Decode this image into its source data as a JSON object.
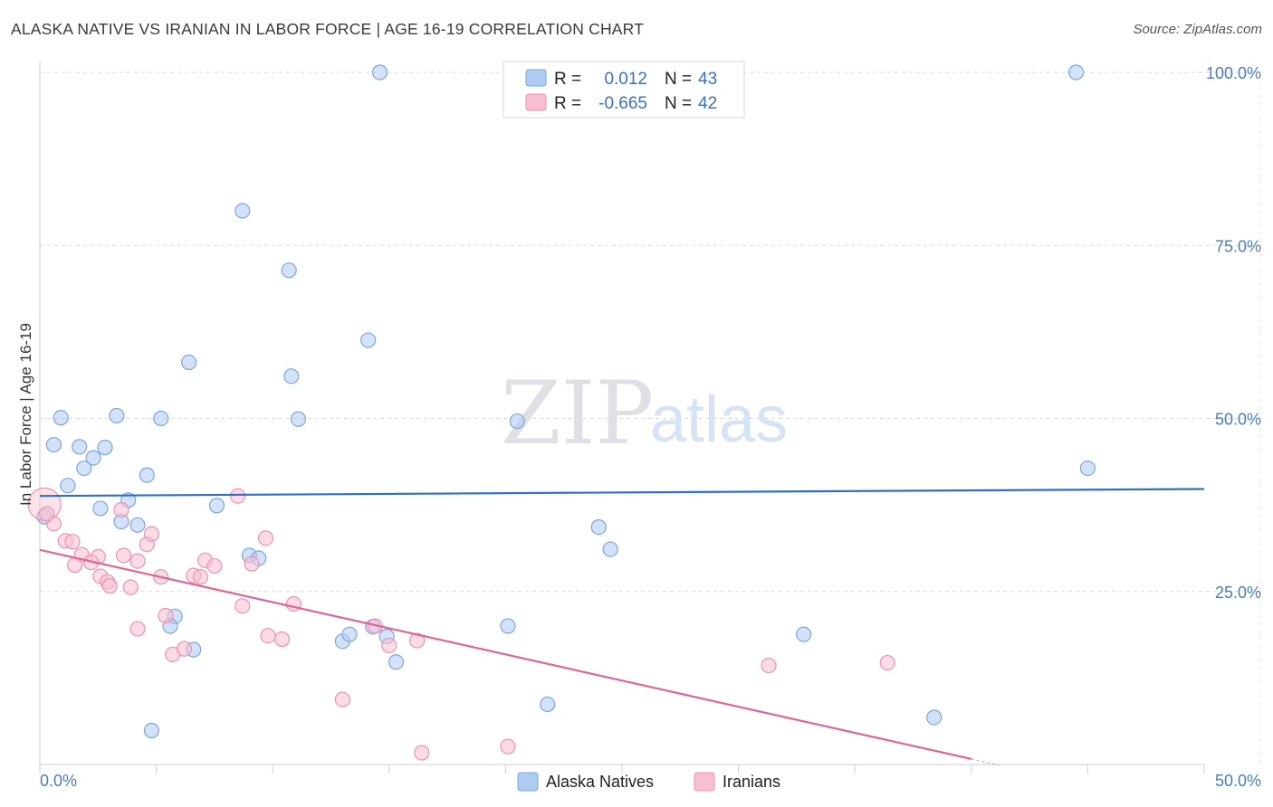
{
  "title": "ALASKA NATIVE VS IRANIAN IN LABOR FORCE | AGE 16-19 CORRELATION CHART",
  "source": "Source: ZipAtlas.com",
  "watermark": {
    "zip": "ZIP",
    "atlas": "atlas"
  },
  "legend": {
    "r_label": "R =",
    "n_label": "N =",
    "rows": [
      {
        "r": "0.012",
        "n": "43"
      },
      {
        "r": "-0.665",
        "n": "42"
      }
    ]
  },
  "colors": {
    "blue_fill": "#aecbf2",
    "blue_stroke": "#7aa6df",
    "blue_line": "#2f6fc6",
    "pink_fill": "#f7bfd2",
    "pink_stroke": "#ec92b2",
    "pink_line": "#e0668f"
  },
  "chart_data": {
    "type": "scatter",
    "title": "ALASKA NATIVE VS IRANIAN IN LABOR FORCE | AGE 16-19 CORRELATION CHART",
    "xlabel": "",
    "ylabel": "In Labor Force | Age 16-19",
    "xlim": [
      0,
      50
    ],
    "ylim": [
      0,
      100
    ],
    "x_tick_labels": [
      "0.0%",
      "50.0%"
    ],
    "y_ticks": [
      25,
      50,
      75,
      100
    ],
    "y_tick_labels": [
      "25.0%",
      "50.0%",
      "75.0%",
      "100.0%"
    ],
    "grid": true,
    "series": [
      {
        "name": "Alaska Natives",
        "color": "#aecbf2",
        "trend": {
          "x": [
            0,
            50
          ],
          "y": [
            38.8,
            39.8
          ]
        },
        "points": [
          [
            0.2,
            35.8
          ],
          [
            0.9,
            50.1
          ],
          [
            0.6,
            46.2
          ],
          [
            1.7,
            45.9
          ],
          [
            2.8,
            45.8
          ],
          [
            1.9,
            42.8
          ],
          [
            2.3,
            44.3
          ],
          [
            1.2,
            40.3
          ],
          [
            3.3,
            50.4
          ],
          [
            4.6,
            41.8
          ],
          [
            5.2,
            50.0
          ],
          [
            3.8,
            38.2
          ],
          [
            2.6,
            37.0
          ],
          [
            3.5,
            35.1
          ],
          [
            4.2,
            34.6
          ],
          [
            6.4,
            58.1
          ],
          [
            7.6,
            37.4
          ],
          [
            8.7,
            80.0
          ],
          [
            10.7,
            71.4
          ],
          [
            10.8,
            56.1
          ],
          [
            11.1,
            49.9
          ],
          [
            14.1,
            61.3
          ],
          [
            14.6,
            100.0
          ],
          [
            20.5,
            49.6
          ],
          [
            44.5,
            100.0
          ],
          [
            45.0,
            42.8
          ],
          [
            24.5,
            31.1
          ],
          [
            24.0,
            34.3
          ],
          [
            9.0,
            30.2
          ],
          [
            9.4,
            29.8
          ],
          [
            5.8,
            21.4
          ],
          [
            5.6,
            20.0
          ],
          [
            6.6,
            16.6
          ],
          [
            13.0,
            17.8
          ],
          [
            13.3,
            18.8
          ],
          [
            14.3,
            19.9
          ],
          [
            14.9,
            18.5
          ],
          [
            15.3,
            14.8
          ],
          [
            20.1,
            20.0
          ],
          [
            21.8,
            8.7
          ],
          [
            32.8,
            18.8
          ],
          [
            38.4,
            6.8
          ],
          [
            4.8,
            4.9
          ]
        ]
      },
      {
        "name": "Iranians",
        "color": "#f7bfd2",
        "trend": {
          "x": [
            0,
            40
          ],
          "y": [
            31.0,
            0.8
          ]
        },
        "points": [
          [
            0.2,
            37.6
          ],
          [
            0.6,
            34.8
          ],
          [
            0.3,
            36.2
          ],
          [
            1.1,
            32.3
          ],
          [
            1.4,
            32.2
          ],
          [
            2.5,
            30.0
          ],
          [
            1.8,
            30.3
          ],
          [
            2.2,
            29.2
          ],
          [
            1.5,
            28.8
          ],
          [
            2.6,
            27.2
          ],
          [
            2.9,
            26.4
          ],
          [
            3.0,
            25.8
          ],
          [
            3.5,
            36.8
          ],
          [
            3.6,
            30.2
          ],
          [
            4.2,
            29.4
          ],
          [
            4.6,
            31.8
          ],
          [
            4.8,
            33.3
          ],
          [
            3.9,
            25.6
          ],
          [
            5.2,
            27.1
          ],
          [
            5.4,
            21.5
          ],
          [
            5.7,
            15.9
          ],
          [
            6.2,
            16.7
          ],
          [
            6.6,
            27.3
          ],
          [
            6.9,
            27.1
          ],
          [
            7.1,
            29.5
          ],
          [
            7.5,
            28.7
          ],
          [
            8.5,
            38.8
          ],
          [
            8.7,
            22.9
          ],
          [
            9.1,
            29.0
          ],
          [
            9.7,
            32.7
          ],
          [
            9.8,
            18.6
          ],
          [
            10.4,
            18.1
          ],
          [
            10.9,
            23.2
          ],
          [
            4.2,
            19.6
          ],
          [
            13.0,
            9.4
          ],
          [
            14.4,
            20.0
          ],
          [
            15.0,
            17.2
          ],
          [
            16.2,
            17.9
          ],
          [
            16.4,
            1.7
          ],
          [
            20.1,
            2.6
          ],
          [
            31.3,
            14.3
          ],
          [
            36.4,
            14.7
          ]
        ]
      }
    ]
  }
}
